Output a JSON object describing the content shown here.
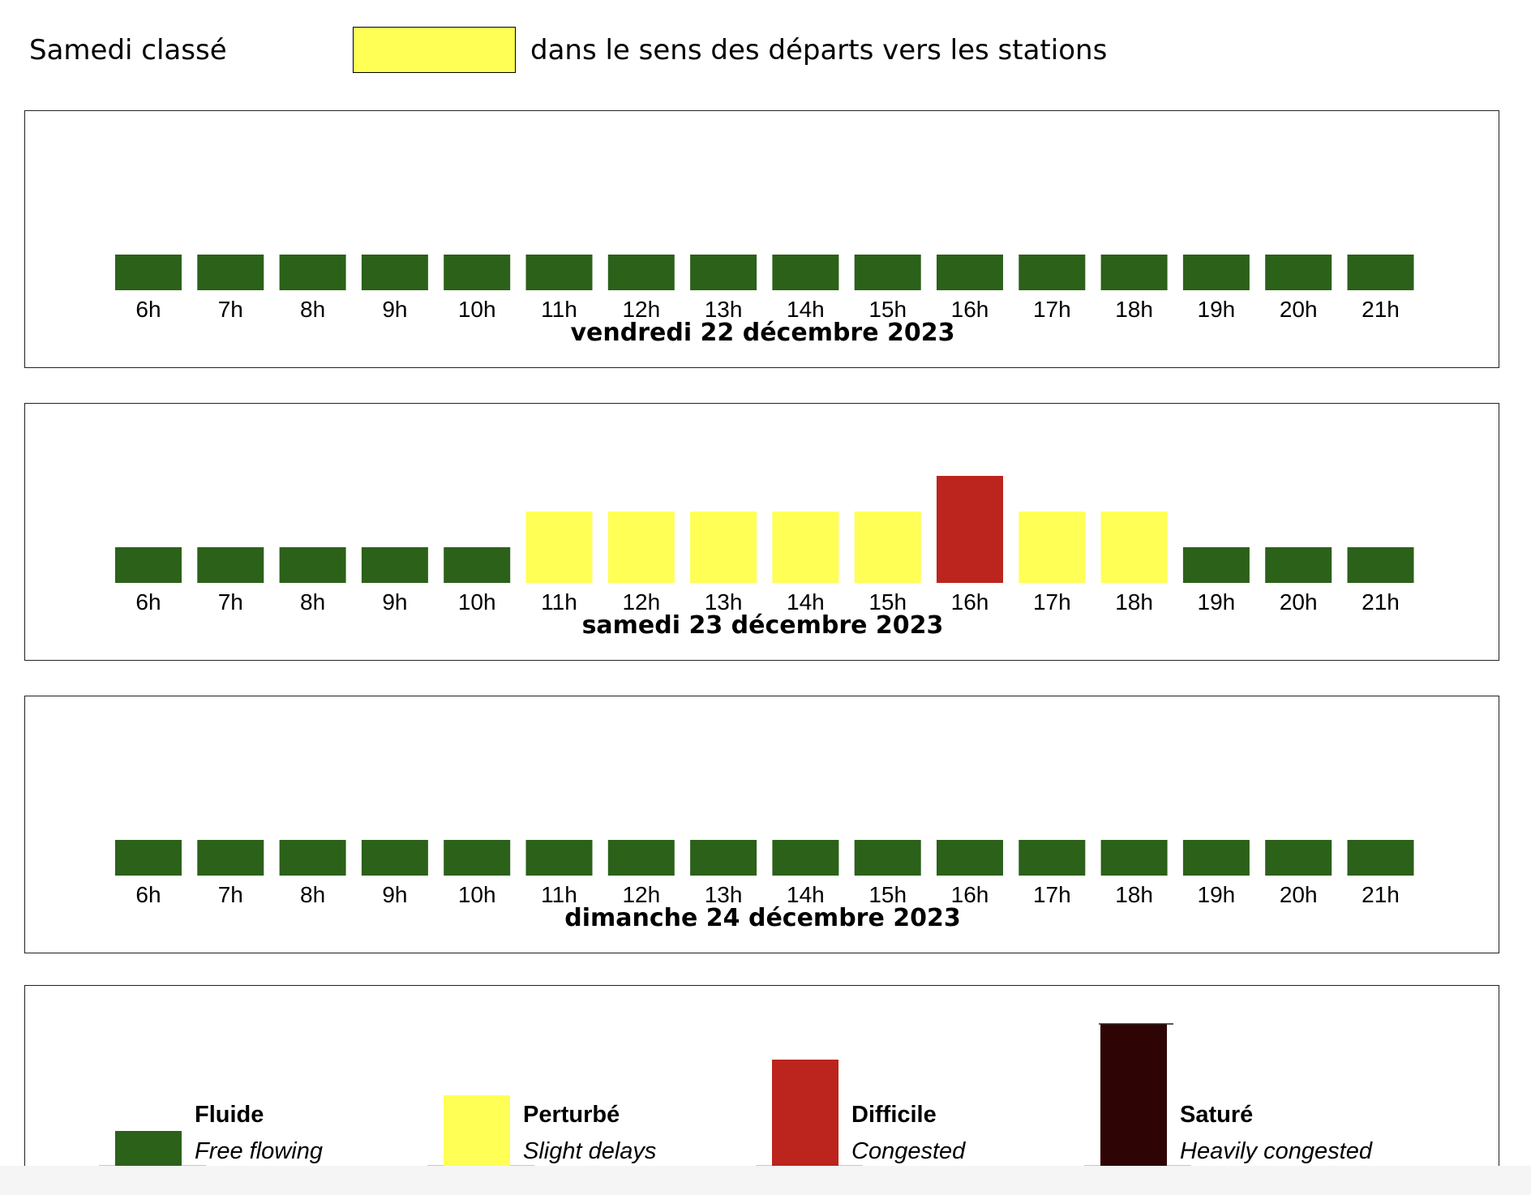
{
  "header": {
    "left_label": "Samedi classé",
    "right_label": "dans le sens des départs vers les stations",
    "swatch_color": "#ffff55"
  },
  "chart_data": {
    "type": "bar",
    "categories": [
      "6h",
      "7h",
      "8h",
      "9h",
      "10h",
      "11h",
      "12h",
      "13h",
      "14h",
      "15h",
      "16h",
      "17h",
      "18h",
      "19h",
      "20h",
      "21h"
    ],
    "levels": {
      "1": {
        "title": "Fluide",
        "subtitle": "Free flowing",
        "color": "#2b6119"
      },
      "2": {
        "title": "Perturbé",
        "subtitle": "Slight delays",
        "color": "#ffff55"
      },
      "3": {
        "title": "Difficile",
        "subtitle": "Congested",
        "color": "#bb251d"
      },
      "4": {
        "title": "Saturé",
        "subtitle": "Heavily congested",
        "color": "#2e0504"
      }
    },
    "days": [
      {
        "date": "vendredi 22 décembre 2023",
        "values": [
          1,
          1,
          1,
          1,
          1,
          1,
          1,
          1,
          1,
          1,
          1,
          1,
          1,
          1,
          1,
          1
        ]
      },
      {
        "date": "samedi 23 décembre 2023",
        "values": [
          1,
          1,
          1,
          1,
          1,
          2,
          2,
          2,
          2,
          2,
          3,
          2,
          2,
          1,
          1,
          1
        ]
      },
      {
        "date": "dimanche 24 décembre 2023",
        "values": [
          1,
          1,
          1,
          1,
          1,
          1,
          1,
          1,
          1,
          1,
          1,
          1,
          1,
          1,
          1,
          1
        ]
      }
    ]
  }
}
